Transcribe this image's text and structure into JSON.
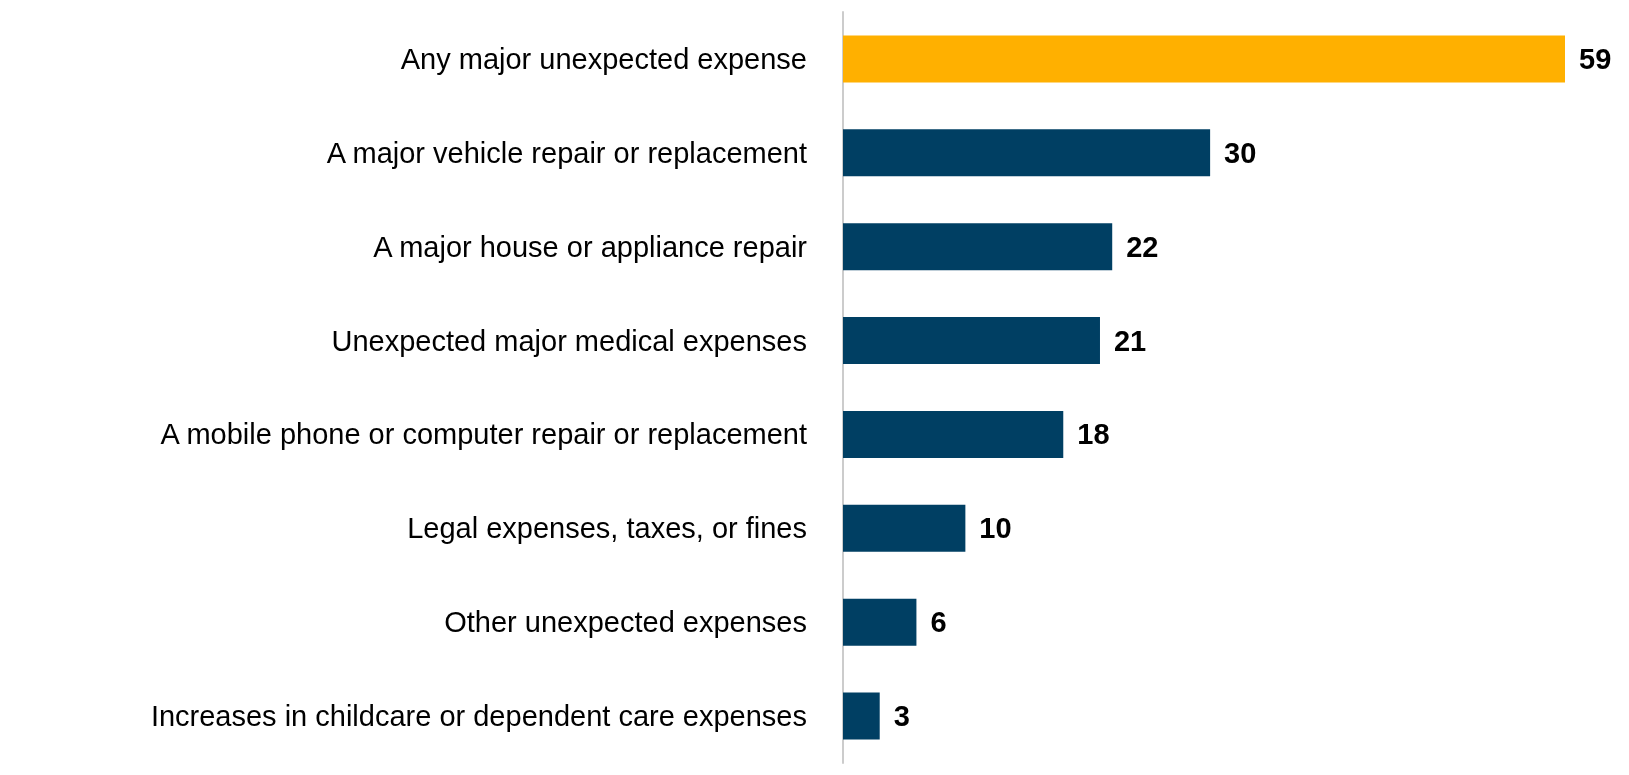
{
  "chart_data": {
    "type": "bar",
    "orientation": "horizontal",
    "categories": [
      "Any major unexpected expense",
      "A major vehicle repair or replacement",
      "A major house or appliance repair",
      "Unexpected major medical expenses",
      "A mobile phone or computer repair or replacement",
      "Legal expenses, taxes, or fines",
      "Other unexpected expenses",
      "Increases in childcare or dependent care expenses"
    ],
    "values": [
      59,
      30,
      22,
      21,
      18,
      10,
      6,
      3
    ],
    "colors": [
      "#ffb000",
      "#003f63",
      "#003f63",
      "#003f63",
      "#003f63",
      "#003f63",
      "#003f63",
      "#003f63"
    ],
    "data_labels": true,
    "tick_labels": "y",
    "grid": false
  }
}
